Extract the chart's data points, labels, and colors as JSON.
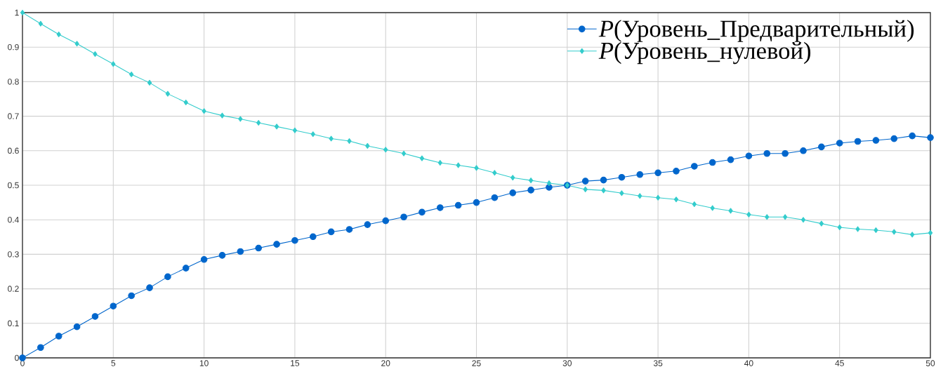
{
  "chart_data": {
    "type": "line",
    "x": [
      0,
      1,
      2,
      3,
      4,
      5,
      6,
      7,
      8,
      9,
      10,
      11,
      12,
      13,
      14,
      15,
      16,
      17,
      18,
      19,
      20,
      21,
      22,
      23,
      24,
      25,
      26,
      27,
      28,
      29,
      30,
      31,
      32,
      33,
      34,
      35,
      36,
      37,
      38,
      39,
      40,
      41,
      42,
      43,
      44,
      45,
      46,
      47,
      48,
      49,
      50
    ],
    "series": [
      {
        "name": "*P*(Уровень_Предварительный)",
        "color": "#0066cc",
        "marker": "circle",
        "values": [
          0,
          0.03,
          0.063,
          0.09,
          0.12,
          0.15,
          0.18,
          0.203,
          0.235,
          0.26,
          0.285,
          0.297,
          0.308,
          0.318,
          0.329,
          0.34,
          0.351,
          0.365,
          0.372,
          0.386,
          0.397,
          0.408,
          0.422,
          0.435,
          0.442,
          0.45,
          0.464,
          0.478,
          0.486,
          0.494,
          0.5,
          0.512,
          0.515,
          0.523,
          0.531,
          0.536,
          0.541,
          0.555,
          0.566,
          0.574,
          0.585,
          0.592,
          0.592,
          0.6,
          0.611,
          0.622,
          0.627,
          0.63,
          0.635,
          0.643,
          0.638
        ]
      },
      {
        "name": "*P*(Уровень_нулевой)",
        "color": "#33cccc",
        "marker": "diamond",
        "values": [
          1,
          0.968,
          0.937,
          0.91,
          0.88,
          0.851,
          0.821,
          0.797,
          0.765,
          0.74,
          0.715,
          0.702,
          0.692,
          0.681,
          0.67,
          0.659,
          0.648,
          0.635,
          0.628,
          0.614,
          0.603,
          0.592,
          0.578,
          0.565,
          0.558,
          0.55,
          0.536,
          0.522,
          0.514,
          0.506,
          0.5,
          0.488,
          0.485,
          0.477,
          0.469,
          0.464,
          0.459,
          0.445,
          0.434,
          0.426,
          0.415,
          0.408,
          0.408,
          0.4,
          0.389,
          0.378,
          0.373,
          0.37,
          0.365,
          0.357,
          0.362
        ]
      }
    ],
    "xlim": [
      0,
      50
    ],
    "ylim": [
      0,
      1
    ],
    "xticks": [
      0,
      5,
      10,
      15,
      20,
      25,
      30,
      35,
      40,
      45,
      50
    ],
    "yticks": [
      0,
      0.1,
      0.2,
      0.3,
      0.4,
      0.5,
      0.6,
      0.7,
      0.8,
      0.9,
      1
    ],
    "grid": true,
    "legend": "top right",
    "line_style": "solid"
  }
}
